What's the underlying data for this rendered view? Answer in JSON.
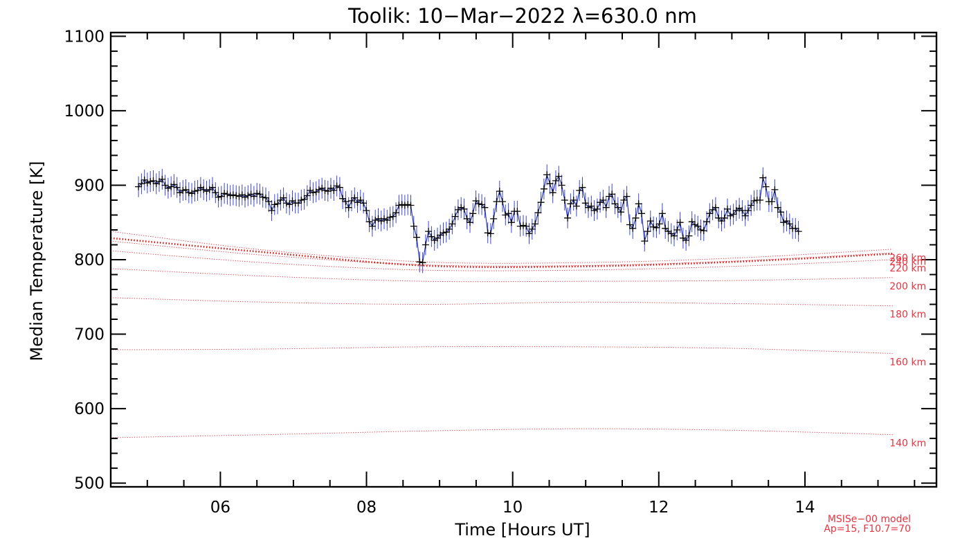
{
  "chart_data": {
    "type": "line",
    "title": "Toolik: 10−Mar−2022 λ=630.0 nm",
    "xlabel": "Time [Hours UT]",
    "ylabel": "Median Temperature [K]",
    "xlim": [
      4.5,
      15.8
    ],
    "ylim": [
      495,
      1105
    ],
    "x_major_ticks": [
      6,
      8,
      10,
      12,
      14
    ],
    "x_tick_labels": [
      "06",
      "08",
      "10",
      "12",
      "14"
    ],
    "y_major_ticks": [
      500,
      600,
      700,
      800,
      900,
      1000,
      1100
    ],
    "y_tick_labels": [
      "500",
      "600",
      "700",
      "800",
      "900",
      "1000",
      "1100"
    ],
    "grid": false,
    "colors": {
      "observed_line": "#1f2fb0",
      "observed_points": "#000000",
      "errorbars": "#3a44d6",
      "model": "#e8333f",
      "model_main": "#e00000"
    },
    "observed": {
      "x_start": 4.88,
      "x_step": 0.0405,
      "y": [
        898,
        902,
        907,
        903,
        905,
        906,
        902,
        905,
        908,
        900,
        896,
        898,
        901,
        897,
        890,
        893,
        894,
        890,
        889,
        892,
        893,
        897,
        894,
        892,
        894,
        897,
        890,
        884,
        885,
        889,
        888,
        886,
        887,
        886,
        885,
        887,
        884,
        886,
        888,
        885,
        889,
        888,
        884,
        883,
        878,
        866,
        874,
        875,
        880,
        883,
        876,
        874,
        879,
        876,
        876,
        880,
        881,
        886,
        893,
        890,
        891,
        894,
        896,
        893,
        892,
        896,
        893,
        899,
        897,
        882,
        878,
        870,
        879,
        883,
        877,
        880,
        876,
        866,
        851,
        845,
        853,
        855,
        852,
        855,
        853,
        857,
        858,
        863,
        873,
        874,
        873,
        874,
        873,
        845,
        830,
        797,
        796,
        820,
        838,
        831,
        826,
        829,
        833,
        836,
        837,
        841,
        848,
        858,
        867,
        870,
        868,
        855,
        850,
        862,
        879,
        875,
        874,
        870,
        836,
        835,
        855,
        878,
        892,
        878,
        860,
        862,
        850,
        865,
        865,
        845,
        846,
        845,
        835,
        841,
        848,
        863,
        877,
        895,
        914,
        902,
        890,
        906,
        912,
        900,
        880,
        856,
        875,
        880,
        872,
        893,
        897,
        876,
        870,
        872,
        866,
        868,
        877,
        880,
        870,
        885,
        888,
        875,
        870,
        864,
        880,
        885,
        847,
        842,
        856,
        875,
        862,
        825,
        838,
        852,
        844,
        843,
        848,
        862,
        842,
        838,
        835,
        832,
        840,
        850,
        829,
        826,
        832,
        851,
        847,
        845,
        840,
        839,
        851,
        862,
        867,
        870,
        856,
        852,
        856,
        868,
        859,
        861,
        866,
        869,
        866,
        859,
        866,
        873,
        879,
        880,
        880,
        910,
        898,
        878,
        878,
        894,
        870,
        864,
        850,
        852,
        848,
        842,
        842,
        838
      ],
      "err": 14
    },
    "model_curves": [
      {
        "label": "140 km",
        "y": [
          561,
          565,
          570,
          573,
          571,
          565
        ]
      },
      {
        "label": "160 km",
        "y": [
          679,
          680,
          683,
          683,
          681,
          674
        ]
      },
      {
        "label": "180 km",
        "y": [
          749,
          743,
          740,
          743,
          741,
          738
        ]
      },
      {
        "label": "200 km",
        "y": [
          788,
          778,
          771,
          771,
          772,
          776
        ]
      },
      {
        "label": "220 km",
        "y": [
          812,
          796,
          786,
          786,
          791,
          800
        ]
      },
      {
        "label": "240 km",
        "y": [
          825,
          806,
          793,
          792,
          798,
          809
        ]
      },
      {
        "label": "260 km",
        "y": [
          838,
          813,
          797,
          796,
          802,
          814
        ]
      }
    ],
    "model_x": [
      4.5,
      6.6,
      8.8,
      10.9,
      13.0,
      15.2
    ],
    "model_label_x": 15.3,
    "main_curve": {
      "y": [
        829,
        810,
        792,
        791,
        797,
        808
      ]
    },
    "model_note": [
      "MSISe−00 model",
      "Ap=15, F10.7=70"
    ]
  }
}
